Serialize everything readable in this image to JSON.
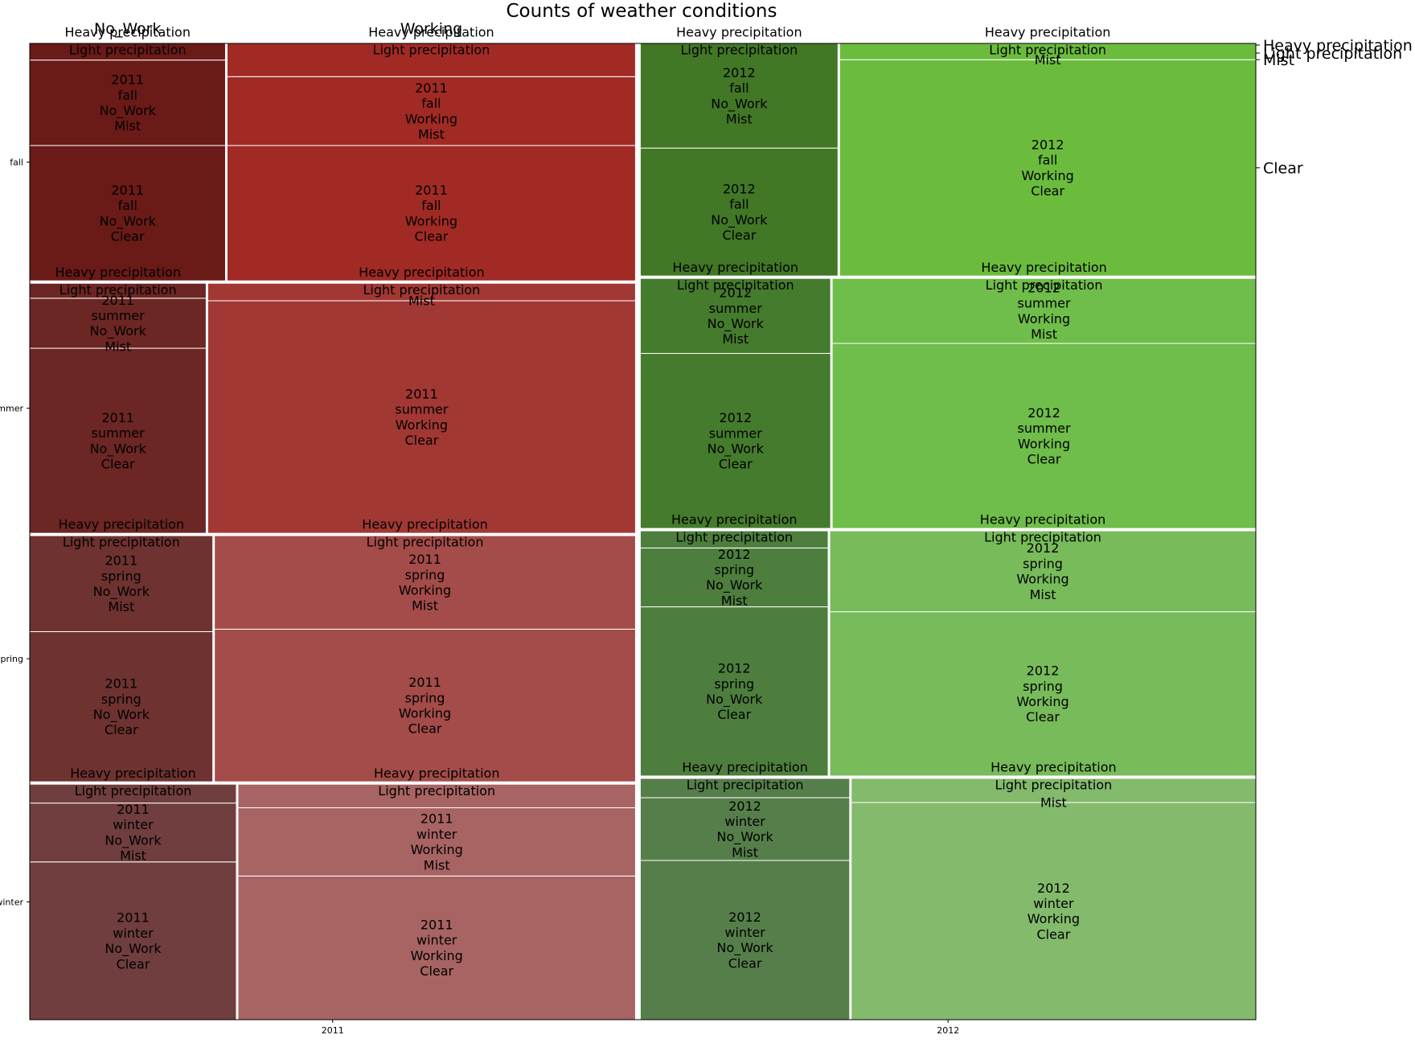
{
  "chart_data": {
    "type": "mosaic",
    "title": "Counts of weather conditions",
    "x_ticks": [
      "2011",
      "2012"
    ],
    "y_ticks": [
      "fall",
      "summer",
      "spring",
      "winter"
    ],
    "top_labels": [
      "No_Work",
      "Working"
    ],
    "right_ticks": [
      "Heavy precipitation",
      "Light precipitation",
      "Mist",
      "Clear"
    ],
    "years": [
      {
        "year": "2011",
        "share": 0.496,
        "seasons": [
          {
            "season": "fall",
            "share": 0.245,
            "groups": [
              {
                "work": "No_Work",
                "share": 0.324,
                "weather": {
                  "Clear": 0.57,
                  "Mist": 0.36,
                  "Light precipitation": 0.07,
                  "Heavy precipitation": 0.0
                }
              },
              {
                "work": "Working",
                "share": 0.676,
                "weather": {
                  "Clear": 0.57,
                  "Mist": 0.29,
                  "Light precipitation": 0.14,
                  "Heavy precipitation": 0.0
                }
              }
            ]
          },
          {
            "season": "summer",
            "share": 0.258,
            "groups": [
              {
                "work": "No_Work",
                "share": 0.292,
                "weather": {
                  "Clear": 0.74,
                  "Mist": 0.2,
                  "Light precipitation": 0.06,
                  "Heavy precipitation": 0.0
                }
              },
              {
                "work": "Working",
                "share": 0.708,
                "weather": {
                  "Clear": 0.93,
                  "Mist": 0.0,
                  "Light precipitation": 0.07,
                  "Heavy precipitation": 0.0
                }
              }
            ]
          },
          {
            "season": "spring",
            "share": 0.254,
            "groups": [
              {
                "work": "No_Work",
                "share": 0.303,
                "weather": {
                  "Clear": 0.61,
                  "Mist": 0.39,
                  "Light precipitation": 0.0,
                  "Heavy precipitation": 0.0
                }
              },
              {
                "work": "Working",
                "share": 0.697,
                "weather": {
                  "Clear": 0.62,
                  "Mist": 0.38,
                  "Light precipitation": 0.0,
                  "Heavy precipitation": 0.0
                }
              }
            ]
          },
          {
            "season": "winter",
            "share": 0.243,
            "groups": [
              {
                "work": "No_Work",
                "share": 0.342,
                "weather": {
                  "Clear": 0.67,
                  "Mist": 0.25,
                  "Light precipitation": 0.08,
                  "Heavy precipitation": 0.0
                }
              },
              {
                "work": "Working",
                "share": 0.658,
                "weather": {
                  "Clear": 0.61,
                  "Mist": 0.29,
                  "Light precipitation": 0.1,
                  "Heavy precipitation": 0.0
                }
              }
            ]
          }
        ]
      },
      {
        "year": "2012",
        "share": 0.504,
        "seasons": [
          {
            "season": "fall",
            "share": 0.24,
            "groups": [
              {
                "work": "No_Work",
                "share": 0.322,
                "weather": {
                  "Clear": 0.55,
                  "Mist": 0.45,
                  "Light precipitation": 0.0,
                  "Heavy precipitation": 0.0
                }
              },
              {
                "work": "Working",
                "share": 0.678,
                "weather": {
                  "Clear": 0.93,
                  "Mist": 0.0,
                  "Light precipitation": 0.07,
                  "Heavy precipitation": 0.0
                }
              }
            ]
          },
          {
            "season": "summer",
            "share": 0.258,
            "groups": [
              {
                "work": "No_Work",
                "share": 0.31,
                "weather": {
                  "Clear": 0.7,
                  "Mist": 0.3,
                  "Light precipitation": 0.0,
                  "Heavy precipitation": 0.0
                }
              },
              {
                "work": "Working",
                "share": 0.69,
                "weather": {
                  "Clear": 0.74,
                  "Mist": 0.26,
                  "Light precipitation": 0.0,
                  "Heavy precipitation": 0.0
                }
              }
            ]
          },
          {
            "season": "spring",
            "share": 0.253,
            "groups": [
              {
                "work": "No_Work",
                "share": 0.306,
                "weather": {
                  "Clear": 0.69,
                  "Mist": 0.24,
                  "Light precipitation": 0.07,
                  "Heavy precipitation": 0.0
                }
              },
              {
                "work": "Working",
                "share": 0.694,
                "weather": {
                  "Clear": 0.67,
                  "Mist": 0.33,
                  "Light precipitation": 0.0,
                  "Heavy precipitation": 0.0
                }
              }
            ]
          },
          {
            "season": "winter",
            "share": 0.249,
            "groups": [
              {
                "work": "No_Work",
                "share": 0.341,
                "weather": {
                  "Clear": 0.66,
                  "Mist": 0.26,
                  "Light precipitation": 0.08,
                  "Heavy precipitation": 0.0
                }
              },
              {
                "work": "Working",
                "share": 0.659,
                "weather": {
                  "Clear": 0.9,
                  "Mist": 0.0,
                  "Light precipitation": 0.1,
                  "Heavy precipitation": 0.0
                }
              }
            ]
          }
        ]
      }
    ],
    "colors": {
      "2011": {
        "fall": [
          "#6a1a17",
          "#a12a25"
        ],
        "summer": [
          "#6c2623",
          "#a13834"
        ],
        "spring": [
          "#6e3230",
          "#a34c49"
        ],
        "winter": [
          "#703e3e",
          "#a76463"
        ]
      },
      "2012": {
        "fall": [
          "#417725",
          "#6bbc3c"
        ],
        "summer": [
          "#457b2c",
          "#6fbd4a"
        ],
        "spring": [
          "#4d7e3d",
          "#78bb5a"
        ],
        "winter": [
          "#567e4a",
          "#83ba6c"
        ]
      }
    }
  }
}
